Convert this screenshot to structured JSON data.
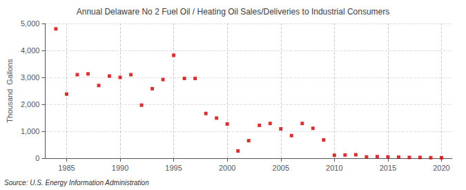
{
  "chart_data": {
    "type": "scatter",
    "title": "Annual Delaware No 2 Fuel Oil / Heating Oil Sales/Deliveries to Industrial Consumers",
    "ylabel": "Thousand  Gallons",
    "annotation": "Source: U.S. Energy Information Administration",
    "x": [
      1984,
      1985,
      1986,
      1987,
      1988,
      1989,
      1990,
      1991,
      1992,
      1993,
      1994,
      1995,
      1996,
      1997,
      1998,
      1999,
      2000,
      2001,
      2002,
      2003,
      2004,
      2005,
      2006,
      2007,
      2008,
      2009,
      2010,
      2011,
      2012,
      2013,
      2014,
      2015,
      2016,
      2017,
      2018,
      2019,
      2020
    ],
    "values": [
      4800,
      2380,
      3100,
      3130,
      2700,
      3050,
      3000,
      3100,
      1970,
      2580,
      2920,
      3820,
      2960,
      2960,
      1660,
      1490,
      1270,
      270,
      650,
      1220,
      1290,
      1090,
      840,
      1290,
      1110,
      680,
      110,
      120,
      130,
      50,
      60,
      50,
      40,
      30,
      30,
      20,
      20
    ],
    "color": "#cc0000",
    "marker": "square",
    "xlim": [
      1983,
      2021
    ],
    "xticks": [
      1985,
      1990,
      1995,
      2000,
      2005,
      2010,
      2015,
      2020
    ],
    "ylim": [
      0,
      5000
    ],
    "yticks": [
      0,
      {
        "value": 1000,
        "label": "1,000"
      },
      {
        "value": 2000,
        "label": "2,000"
      },
      {
        "value": 3000,
        "label": "3,000"
      },
      {
        "value": 4000,
        "label": "4,000"
      },
      {
        "value": 5000,
        "label": "5,000"
      }
    ],
    "grid": true
  }
}
